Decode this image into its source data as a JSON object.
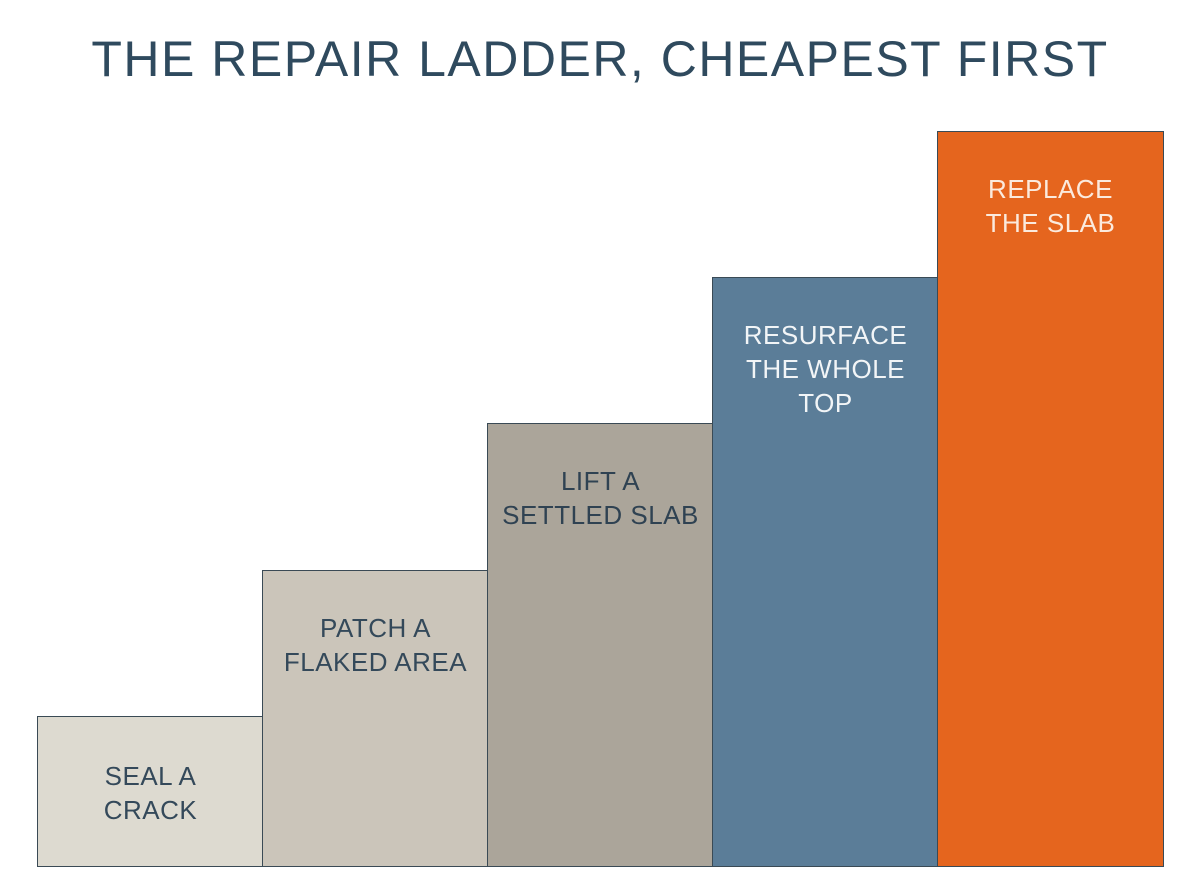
{
  "title": "THE REPAIR LADDER, CHEAPEST FIRST",
  "steps": [
    {
      "label": "SEAL A\nCRACK",
      "rank": 1
    },
    {
      "label": "PATCH A\nFLAKED AREA",
      "rank": 2
    },
    {
      "label": "LIFT A\nSETTLED SLAB",
      "rank": 3
    },
    {
      "label": "RESURFACE\nTHE WHOLE\nTOP",
      "rank": 4
    },
    {
      "label": "REPLACE\nTHE SLAB",
      "rank": 5
    }
  ],
  "colors": {
    "title": "#2f4a5e",
    "step1": "#dddad0",
    "step2": "#cbc5ba",
    "step3": "#aba59a",
    "step4": "#5b7d98",
    "step5": "#e5651e"
  }
}
